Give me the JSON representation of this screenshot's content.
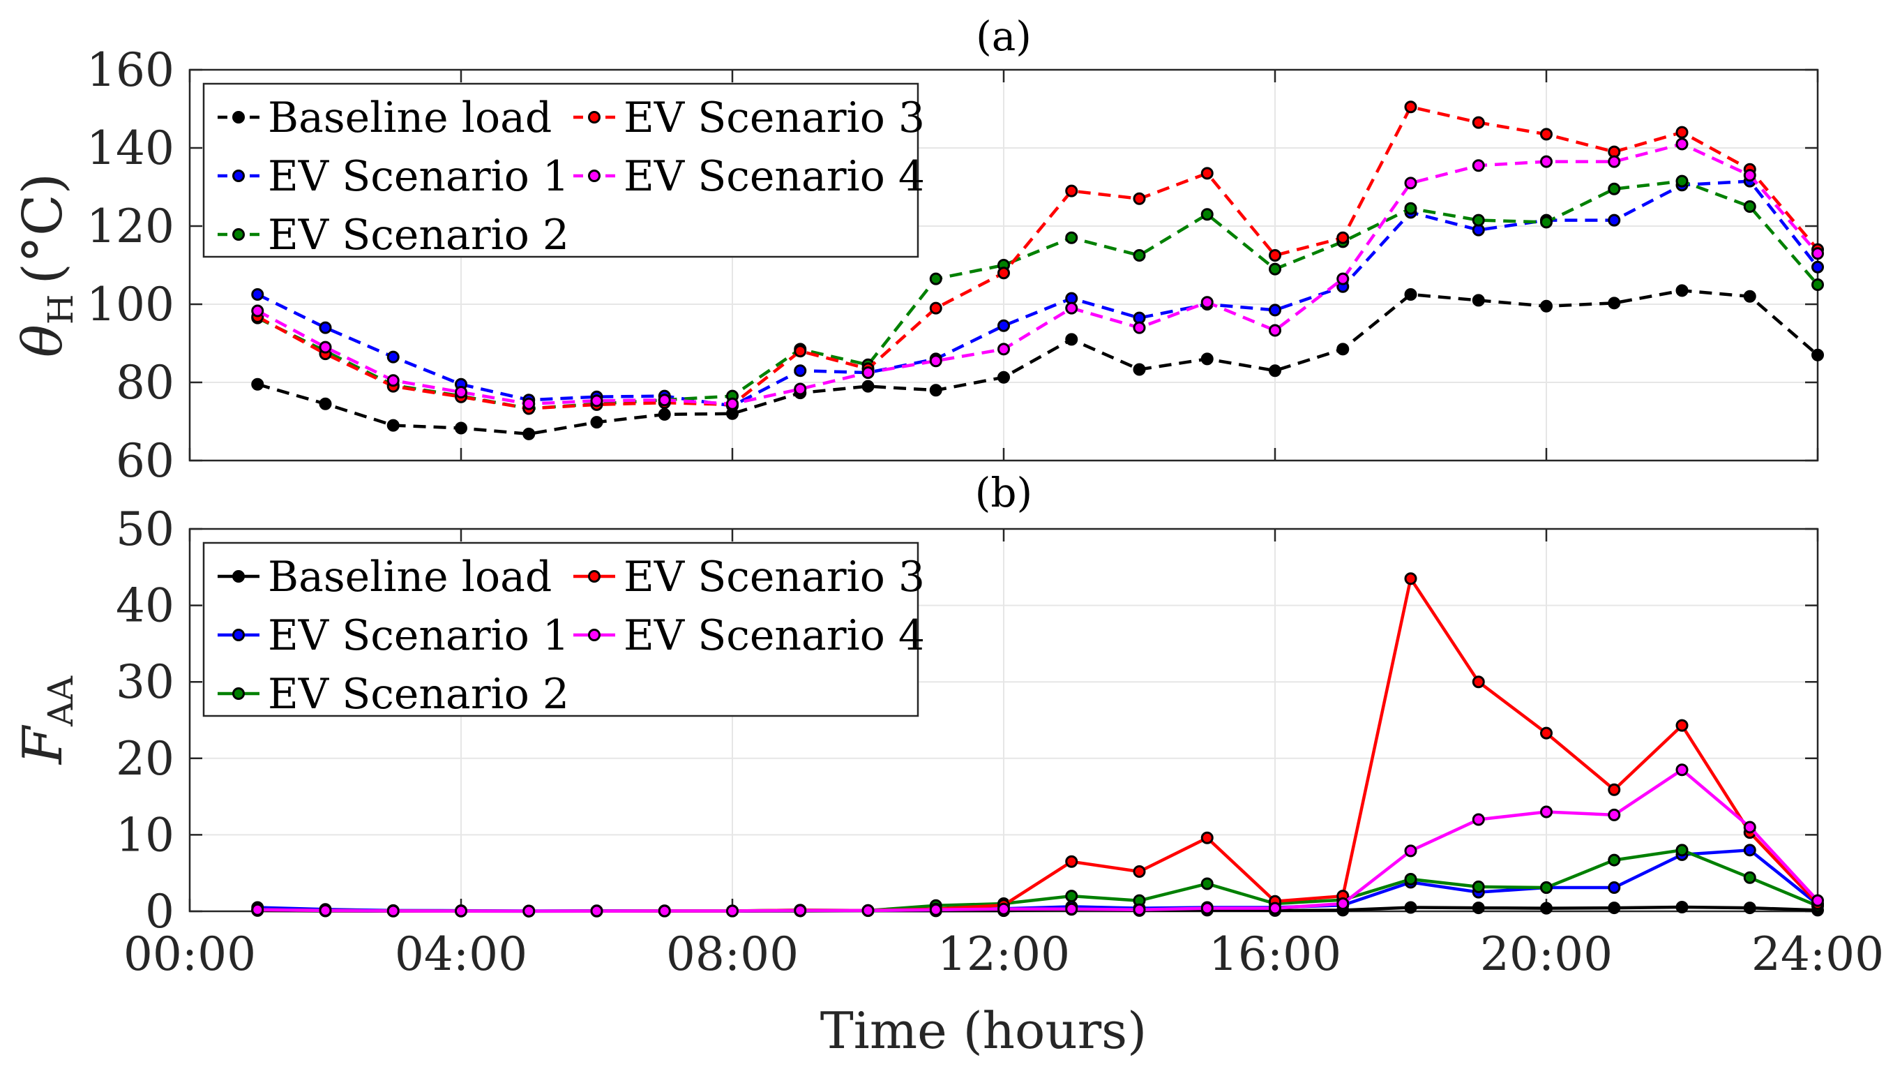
{
  "chart_data": [
    {
      "type": "line",
      "title": "(a)",
      "ylabel": "θH (°C)",
      "ylabel_main": "θ",
      "ylabel_sub": "H",
      "ylabel_unit": "(°C)",
      "ylim": [
        60,
        160
      ],
      "yticks": [
        "60",
        "80",
        "100",
        "120",
        "140",
        "160"
      ],
      "line_style": "dashed",
      "x": [
        1,
        2,
        3,
        4,
        5,
        6,
        7,
        8,
        9,
        10,
        11,
        12,
        13,
        14,
        15,
        16,
        17,
        18,
        19,
        20,
        21,
        22,
        23,
        24
      ],
      "series": [
        {
          "name": "Baseline load",
          "color": "#000000",
          "values": [
            79.5,
            74.5,
            69,
            68.3,
            66.8,
            69.8,
            71.8,
            72,
            77.3,
            79,
            78,
            81.3,
            91,
            83.3,
            86,
            83,
            88.5,
            102.5,
            101,
            99.5,
            100.3,
            103.5,
            102,
            87
          ]
        },
        {
          "name": "EV Scenario 1",
          "color": "#0000ff",
          "values": [
            102.5,
            94,
            86.5,
            79.5,
            75.5,
            76.3,
            76.5,
            74,
            83,
            82.5,
            86,
            94.5,
            101.5,
            96.5,
            100,
            98.5,
            104.5,
            123.5,
            119,
            121.5,
            121.5,
            130.5,
            131.5,
            109.5
          ]
        },
        {
          "name": "EV Scenario 2",
          "color": "#008000",
          "values": [
            96.5,
            88,
            79.3,
            76.5,
            73.3,
            74.5,
            75.5,
            76.5,
            88.5,
            84.5,
            106.5,
            110,
            117,
            112.5,
            123,
            109,
            116,
            124.5,
            121.5,
            121,
            129.5,
            131.5,
            125,
            105
          ]
        },
        {
          "name": "EV Scenario 3",
          "color": "#ff0000",
          "values": [
            96.8,
            87.3,
            79,
            76.3,
            73.3,
            74.3,
            74.8,
            74.3,
            88,
            83.5,
            99,
            108,
            129,
            127,
            133.5,
            112.5,
            117,
            150.5,
            146.5,
            143.5,
            139,
            144,
            134.5,
            114
          ]
        },
        {
          "name": "EV Scenario 4",
          "color": "#ff00ff",
          "values": [
            98.3,
            89,
            80.5,
            77.5,
            74.5,
            75.3,
            75.5,
            74.5,
            78.3,
            82.5,
            85.5,
            88.5,
            99,
            94,
            100.5,
            93.3,
            106.5,
            131,
            135.5,
            136.5,
            136.5,
            141,
            133,
            113
          ]
        }
      ]
    },
    {
      "type": "line",
      "title": "(b)",
      "ylabel": "FAA",
      "ylabel_main": "F",
      "ylabel_sub": "AA",
      "ylim": [
        0,
        50
      ],
      "yticks": [
        "0",
        "10",
        "20",
        "30",
        "40",
        "50"
      ],
      "line_style": "solid",
      "xlabel": "Time (hours)",
      "xlim": [
        0,
        24
      ],
      "xticks": [
        0,
        4,
        8,
        12,
        16,
        20,
        24
      ],
      "xtick_labels": [
        "00:00",
        "04:00",
        "08:00",
        "12:00",
        "16:00",
        "20:00",
        "24:00"
      ],
      "x": [
        1,
        2,
        3,
        4,
        5,
        6,
        7,
        8,
        9,
        10,
        11,
        12,
        13,
        14,
        15,
        16,
        17,
        18,
        19,
        20,
        21,
        22,
        23,
        24
      ],
      "series": [
        {
          "name": "Baseline load",
          "color": "#000000",
          "values": [
            0.1,
            0.05,
            0.02,
            0.02,
            0.01,
            0.02,
            0.03,
            0.03,
            0.05,
            0.08,
            0.06,
            0.08,
            0.25,
            0.1,
            0.15,
            0.1,
            0.15,
            0.5,
            0.45,
            0.4,
            0.45,
            0.55,
            0.45,
            0.15
          ]
        },
        {
          "name": "EV Scenario 1",
          "color": "#0000ff",
          "values": [
            0.5,
            0.25,
            0.1,
            0.08,
            0.05,
            0.07,
            0.07,
            0.05,
            0.12,
            0.1,
            0.2,
            0.35,
            0.6,
            0.4,
            0.5,
            0.5,
            0.8,
            3.8,
            2.5,
            3.1,
            3.1,
            7.4,
            8,
            0.9
          ]
        },
        {
          "name": "EV Scenario 2",
          "color": "#008000",
          "values": [
            0.2,
            0.1,
            0.05,
            0.04,
            0.03,
            0.04,
            0.05,
            0.05,
            0.15,
            0.1,
            0.75,
            1,
            2,
            1.4,
            3.6,
            1,
            1.5,
            4.2,
            3.2,
            3.1,
            6.7,
            8,
            4.4,
            0.7
          ]
        },
        {
          "name": "EV Scenario 3",
          "color": "#ff0000",
          "values": [
            0.2,
            0.1,
            0.05,
            0.04,
            0.03,
            0.04,
            0.05,
            0.05,
            0.15,
            0.1,
            0.3,
            0.8,
            6.5,
            5.2,
            9.6,
            1.3,
            2,
            43.5,
            30,
            23.3,
            15.9,
            24.3,
            10.3,
            1
          ]
        },
        {
          "name": "EV Scenario 4",
          "color": "#ff00ff",
          "values": [
            0.2,
            0.1,
            0.05,
            0.04,
            0.03,
            0.04,
            0.05,
            0.05,
            0.1,
            0.1,
            0.2,
            0.3,
            0.3,
            0.2,
            0.4,
            0.4,
            1,
            7.9,
            12,
            13,
            12.6,
            18.5,
            11,
            1.4
          ]
        }
      ]
    }
  ]
}
